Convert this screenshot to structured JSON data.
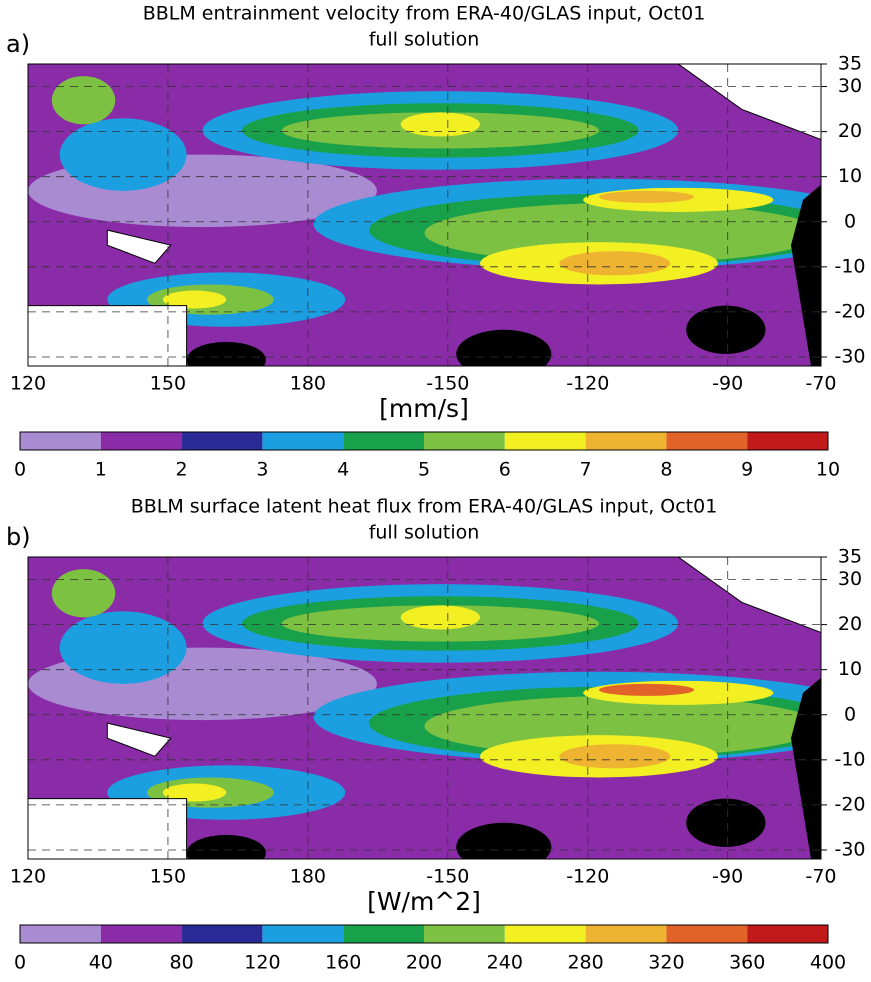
{
  "chart_data": [
    {
      "type": "contour-map",
      "panel_label": "a)",
      "title": "BBLM entrainment velocity from ERA-40/GLAS input, Oct01",
      "subtitle": "full solution",
      "xlim": [
        120,
        290
      ],
      "xticks": [
        120,
        150,
        180,
        {
          "value": 210,
          "label": "-150"
        },
        {
          "value": 240,
          "label": "-120"
        },
        {
          "value": 270,
          "label": "-90"
        },
        {
          "value": 290,
          "label": "-70"
        }
      ],
      "ylim": [
        -32,
        35
      ],
      "yticks": [
        35,
        30,
        20,
        10,
        0,
        -10,
        -20,
        -30
      ],
      "colorbar": {
        "label": "[mm/s]",
        "lim": [
          0,
          10
        ],
        "ticks": [
          0,
          1,
          2,
          3,
          4,
          5,
          6,
          7,
          8,
          9,
          10
        ],
        "colors": [
          "#a98bd2",
          "#8a2ba8",
          "#2b2b98",
          "#1c9fe0",
          "#18a04a",
          "#7dc142",
          "#f2ef22",
          "#eeb431",
          "#e2632a",
          "#c2191b"
        ]
      }
    },
    {
      "type": "contour-map",
      "panel_label": "b)",
      "title": "BBLM surface latent heat flux from ERA-40/GLAS input, Oct01",
      "subtitle": "full solution",
      "xlim": [
        120,
        290
      ],
      "xticks": [
        120,
        150,
        180,
        {
          "value": 210,
          "label": "-150"
        },
        {
          "value": 240,
          "label": "-120"
        },
        {
          "value": 270,
          "label": "-90"
        },
        {
          "value": 290,
          "label": "-70"
        }
      ],
      "ylim": [
        -32,
        35
      ],
      "yticks": [
        35,
        30,
        20,
        10,
        0,
        -10,
        -20,
        -30
      ],
      "colorbar": {
        "label": "[W/m^2]",
        "lim": [
          0,
          400
        ],
        "ticks": [
          0,
          40,
          80,
          120,
          160,
          200,
          240,
          280,
          320,
          360,
          400
        ],
        "colors": [
          "#a98bd2",
          "#8a2ba8",
          "#2b2b98",
          "#1c9fe0",
          "#18a04a",
          "#7dc142",
          "#f2ef22",
          "#eeb431",
          "#e2632a",
          "#c2191b"
        ]
      }
    }
  ]
}
